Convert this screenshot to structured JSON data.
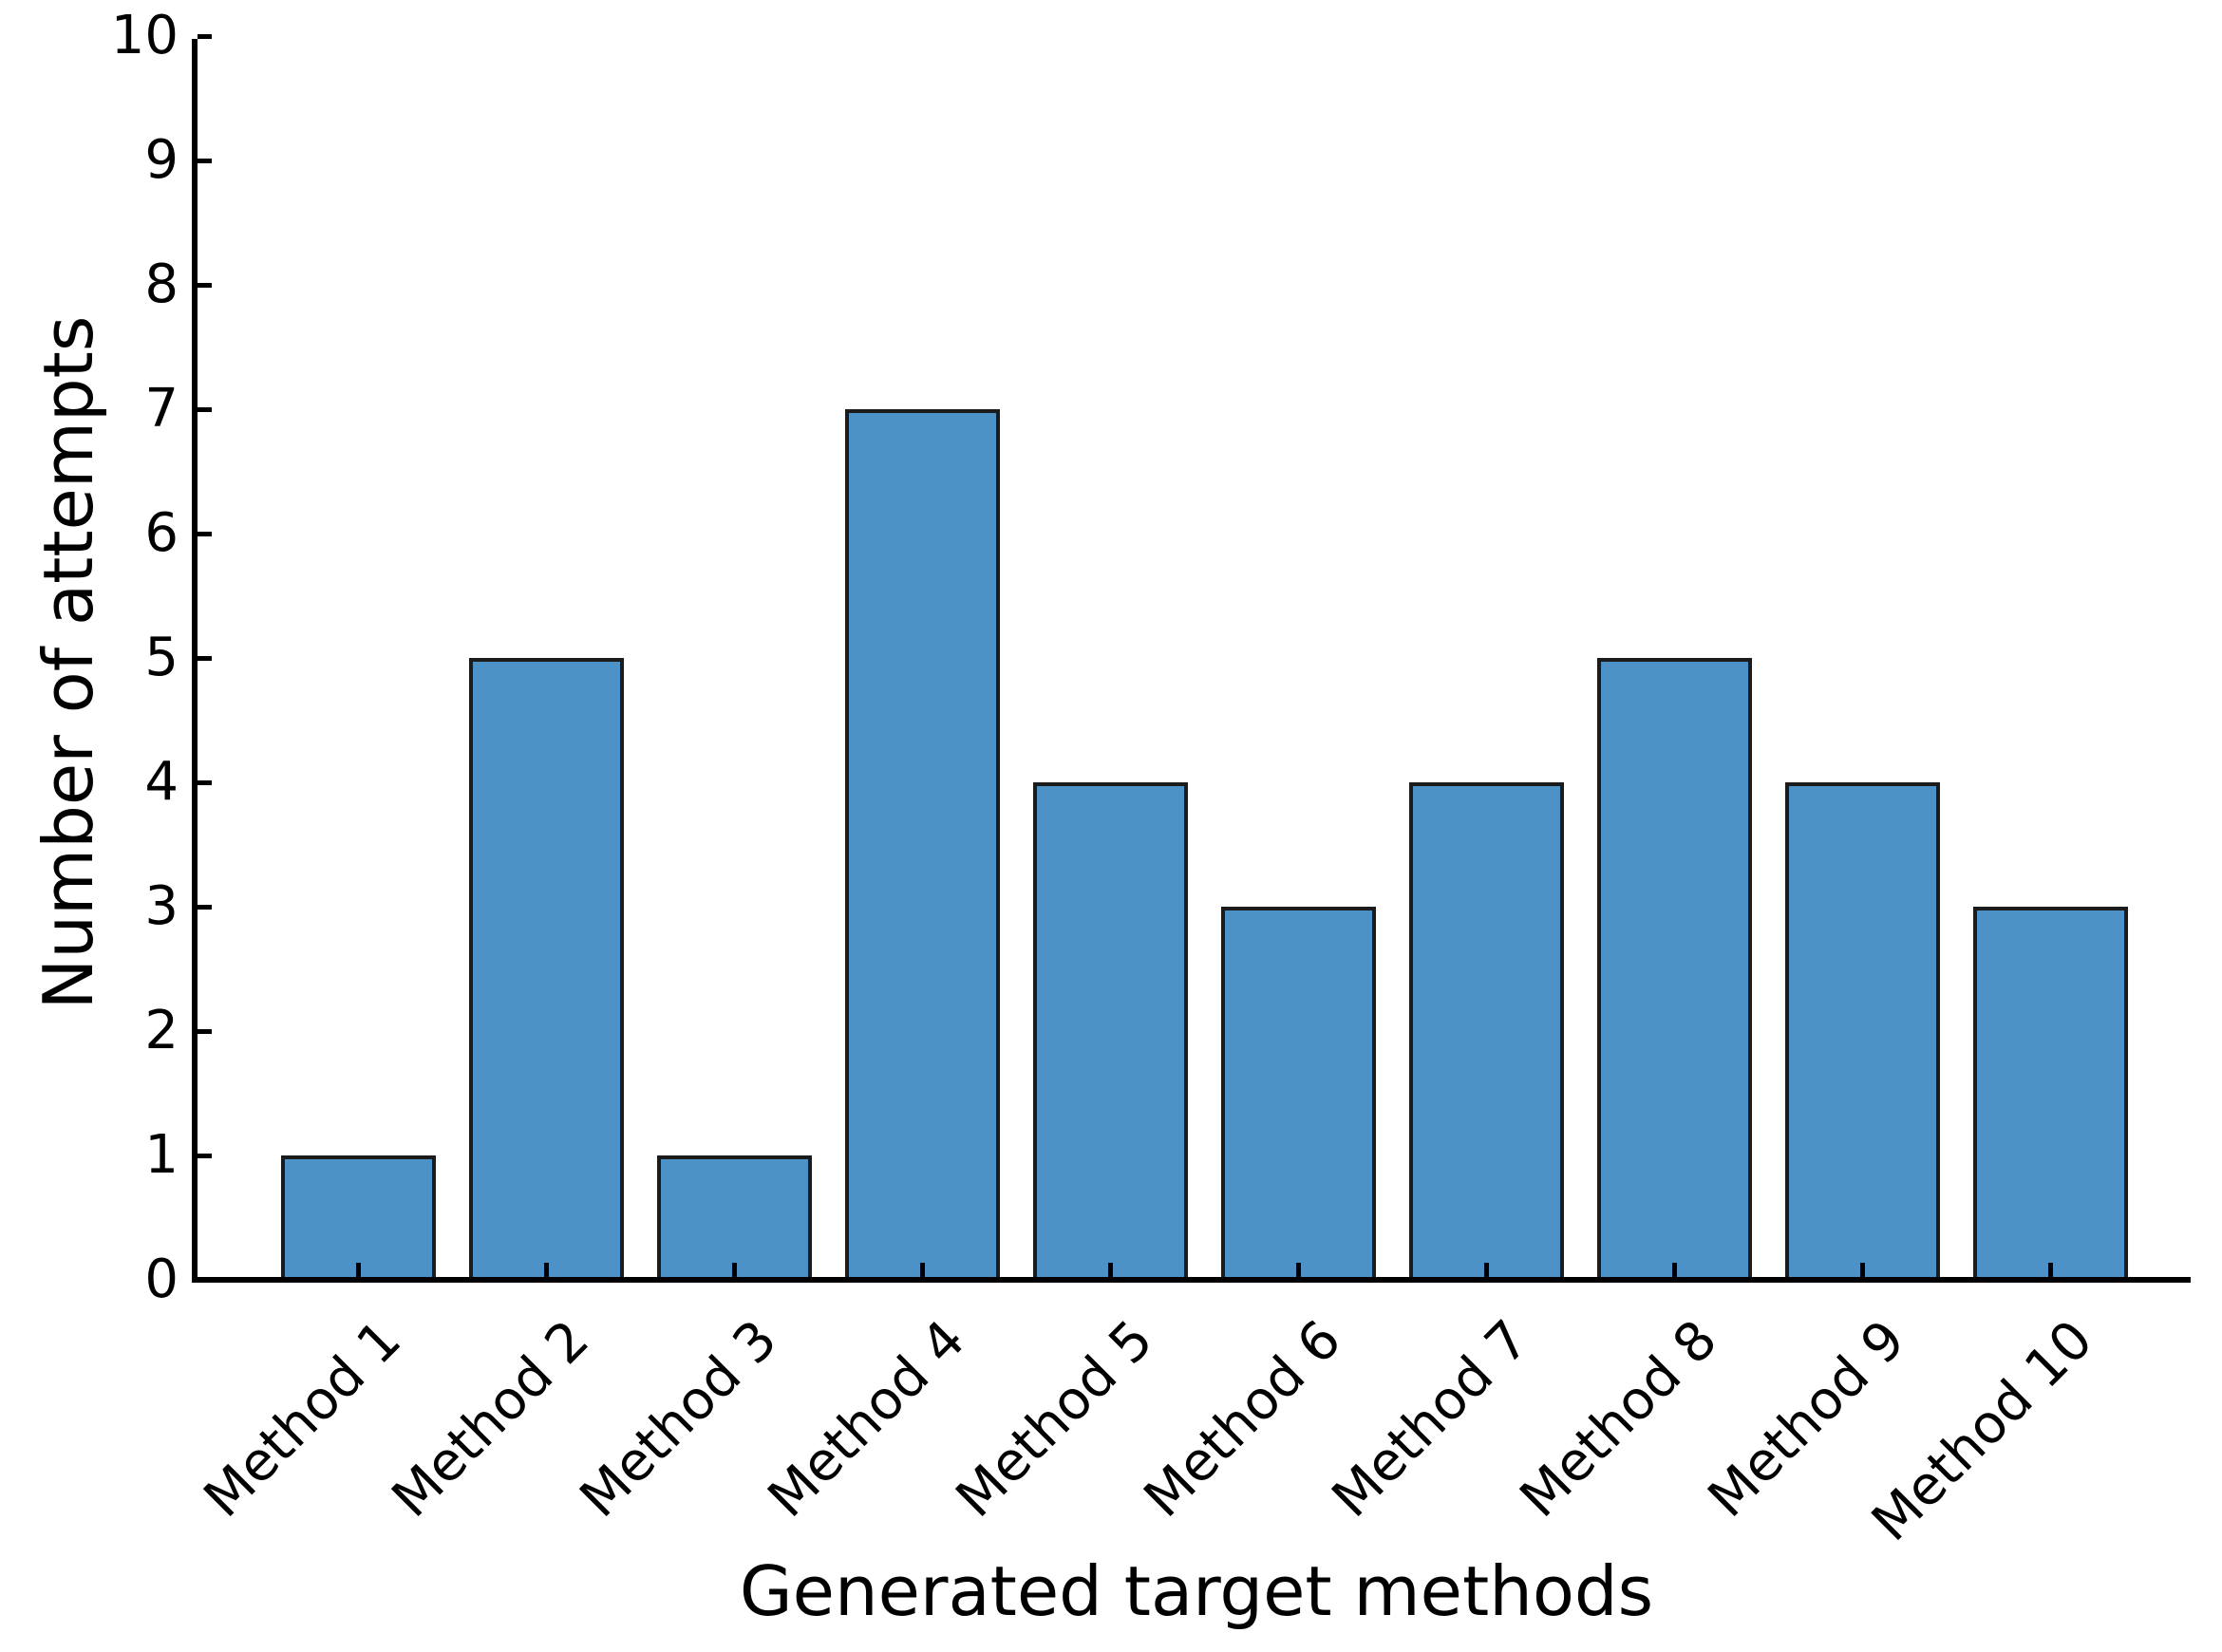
{
  "figure": {
    "background_color": "#ffffff",
    "text_color": "#000000",
    "axis_color": "#000000"
  },
  "chart_data": {
    "type": "bar",
    "title": "",
    "xlabel": "Generated target methods",
    "ylabel": "Number of attempts",
    "categories": [
      "Method 1",
      "Method 2",
      "Method 3",
      "Method 4",
      "Method 5",
      "Method 6",
      "Method 7",
      "Method 8",
      "Method 9",
      "Method 10"
    ],
    "values": [
      1,
      5,
      1,
      7,
      4,
      3,
      4,
      5,
      4,
      3
    ],
    "ylim": [
      0,
      10
    ],
    "yticks": [
      0,
      1,
      2,
      3,
      4,
      5,
      6,
      7,
      8,
      9,
      10
    ],
    "grid": false,
    "legend": null,
    "bar_color": "#4c92c6",
    "bar_edge_color": "#1b1b1b",
    "xtick_label_rotation_deg": 45
  }
}
